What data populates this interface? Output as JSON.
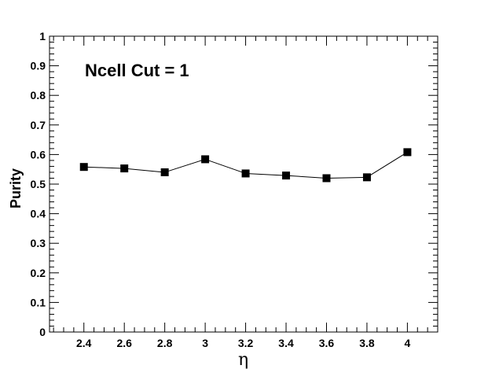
{
  "chart_data": {
    "type": "line",
    "title": "",
    "annotation": "Ncell Cut = 1",
    "xlabel": "η",
    "ylabel": "Purity",
    "xlim": [
      2.23,
      4.15
    ],
    "ylim": [
      0,
      1
    ],
    "x_ticks": [
      "2.4",
      "2.6",
      "2.8",
      "3",
      "3.2",
      "3.4",
      "3.6",
      "3.8",
      "4"
    ],
    "y_ticks": [
      "0",
      "0.1",
      "0.2",
      "0.3",
      "0.4",
      "0.5",
      "0.6",
      "0.7",
      "0.8",
      "0.9",
      "1"
    ],
    "grid": false,
    "legend": "none",
    "marker": "square",
    "color": "#000000",
    "series": [
      {
        "x": [
          2.4,
          2.6,
          2.8,
          3.0,
          3.2,
          3.4,
          3.6,
          3.8,
          4.0
        ],
        "y": [
          0.558,
          0.553,
          0.54,
          0.584,
          0.536,
          0.529,
          0.52,
          0.523,
          0.608
        ]
      }
    ]
  }
}
